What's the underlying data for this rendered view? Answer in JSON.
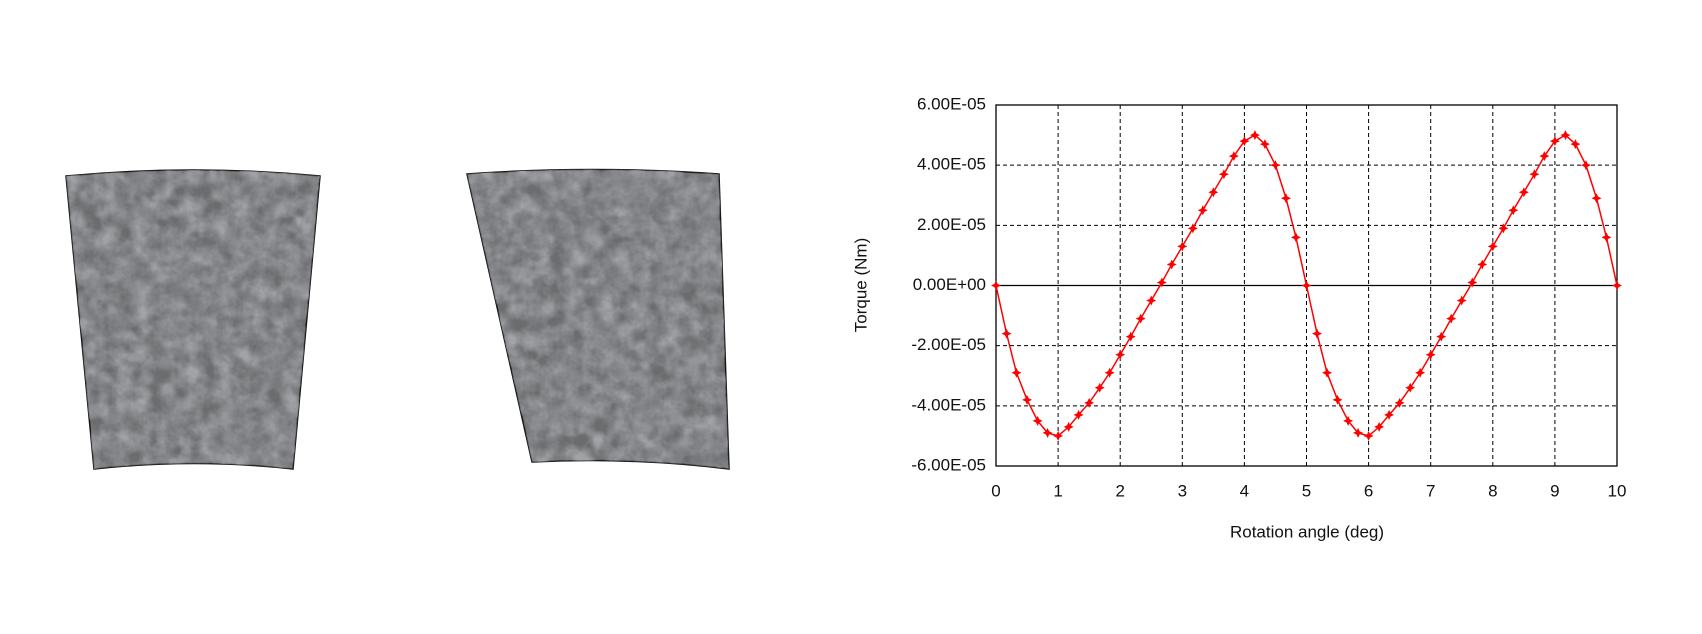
{
  "chart_data": {
    "type": "line",
    "x_label": "Rotation angle (deg)",
    "y_label": "Torque (Nm)",
    "x": [
      0,
      0.17,
      0.33,
      0.5,
      0.67,
      0.83,
      1,
      1.17,
      1.33,
      1.5,
      1.67,
      1.83,
      2,
      2.17,
      2.33,
      2.5,
      2.67,
      2.83,
      3,
      3.17,
      3.33,
      3.5,
      3.67,
      3.83,
      4,
      4.17,
      4.33,
      4.5,
      4.67,
      4.83,
      5,
      5.17,
      5.33,
      5.5,
      5.67,
      5.83,
      6,
      6.17,
      6.33,
      6.5,
      6.67,
      6.83,
      7,
      7.17,
      7.33,
      7.5,
      7.67,
      7.83,
      8,
      8.17,
      8.33,
      8.5,
      8.67,
      8.83,
      9,
      9.17,
      9.33,
      9.5,
      9.67,
      9.83,
      10
    ],
    "series": [
      {
        "color": "#ff0000",
        "values": [
          0,
          -1.6e-05,
          -2.9e-05,
          -3.8e-05,
          -4.5e-05,
          -4.9e-05,
          -5e-05,
          -4.7e-05,
          -4.3e-05,
          -3.9e-05,
          -3.4e-05,
          -2.9e-05,
          -2.3e-05,
          -1.7e-05,
          -1.1e-05,
          -5e-06,
          1e-06,
          7e-06,
          1.3e-05,
          1.9e-05,
          2.5e-05,
          3.1e-05,
          3.7e-05,
          4.3e-05,
          4.8e-05,
          5e-05,
          4.7e-05,
          4e-05,
          2.9e-05,
          1.6e-05,
          0,
          -1.6e-05,
          -2.9e-05,
          -3.8e-05,
          -4.5e-05,
          -4.9e-05,
          -5e-05,
          -4.7e-05,
          -4.3e-05,
          -3.9e-05,
          -3.4e-05,
          -2.9e-05,
          -2.3e-05,
          -1.7e-05,
          -1.1e-05,
          -5e-06,
          1e-06,
          7e-06,
          1.3e-05,
          1.9e-05,
          2.5e-05,
          3.1e-05,
          3.7e-05,
          4.3e-05,
          4.8e-05,
          5e-05,
          4.7e-05,
          4e-05,
          2.9e-05,
          1.6e-05,
          0
        ]
      }
    ],
    "xlim": [
      0,
      10
    ],
    "xticks": [
      0,
      1,
      2,
      3,
      4,
      5,
      6,
      7,
      8,
      9,
      10
    ],
    "ylim": [
      -6e-05,
      6e-05
    ],
    "yticks": [
      {
        "value": -6e-05,
        "label": "-6.00E-05"
      },
      {
        "value": -4e-05,
        "label": "-4.00E-05"
      },
      {
        "value": -2e-05,
        "label": "-2.00E-05"
      },
      {
        "value": 0,
        "label": "0.00E+00"
      },
      {
        "value": 2e-05,
        "label": "2.00E-05"
      },
      {
        "value": 4e-05,
        "label": "4.00E-05"
      },
      {
        "value": 6e-05,
        "label": "6.00E-05"
      }
    ],
    "grid": true
  }
}
